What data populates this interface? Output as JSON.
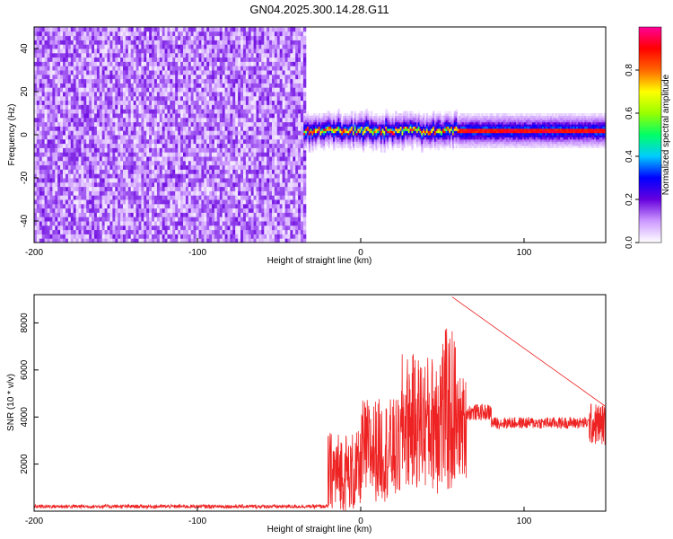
{
  "title": "GN04.2025.300.14.28.G11",
  "chart_data": [
    {
      "type": "heatmap",
      "xlabel": "Height of straight line (km)",
      "ylabel": "Frequency (Hz)",
      "xlim": [
        -200,
        150
      ],
      "ylim": [
        -50,
        50
      ],
      "x_ticks": [
        "-200",
        "-100",
        "0",
        "100"
      ],
      "y_ticks": [
        "-40",
        "-20",
        "0",
        "20",
        "40"
      ],
      "noise_region_x": [
        -200,
        -35
      ],
      "ridge": {
        "x_range": [
          -35,
          150
        ],
        "frequency_hz": 1.5,
        "half_width_hz": 3
      },
      "colorbar": {
        "label": "Normalized spectral amplitude",
        "range": [
          0,
          1
        ],
        "ticks": [
          "0.0",
          "0.2",
          "0.4",
          "0.6",
          "0.8"
        ],
        "colors": [
          "#ffffff",
          "#cc99ff",
          "#6600dd",
          "#0000ff",
          "#00ccff",
          "#00ff66",
          "#99ff00",
          "#ffff00",
          "#ff6600",
          "#ff0000",
          "#ff0099"
        ]
      }
    },
    {
      "type": "line",
      "xlabel": "Height of straight line (km)",
      "ylabel": "SNR (10 * v/v)",
      "xlim": [
        -200,
        150
      ],
      "ylim": [
        0,
        9200
      ],
      "x_ticks": [
        "-200",
        "-100",
        "0",
        "100"
      ],
      "y_ticks": [
        "2000",
        "4000",
        "6000",
        "8000"
      ],
      "color": "#ee2222",
      "segments": [
        {
          "x": [
            -200,
            -20
          ],
          "baseline": 200,
          "noise": 80
        },
        {
          "x": [
            -20,
            0
          ],
          "baseline": 1600,
          "noise": 1800
        },
        {
          "x": [
            0,
            25
          ],
          "baseline": 2600,
          "noise": 2200
        },
        {
          "x": [
            25,
            45
          ],
          "baseline": 3800,
          "noise": 2900
        },
        {
          "x": [
            45,
            58
          ],
          "baseline": 4200,
          "noise": 3600
        },
        {
          "x": [
            58,
            65
          ],
          "baseline": 3600,
          "noise": 2200
        },
        {
          "x": [
            65,
            80
          ],
          "baseline": 4200,
          "noise": 350
        },
        {
          "x": [
            80,
            140
          ],
          "baseline": 3750,
          "noise": 250
        },
        {
          "x": [
            140,
            150
          ],
          "baseline": 3700,
          "noise": 900
        }
      ],
      "peak": {
        "x": 56,
        "y": 9100
      }
    }
  ]
}
